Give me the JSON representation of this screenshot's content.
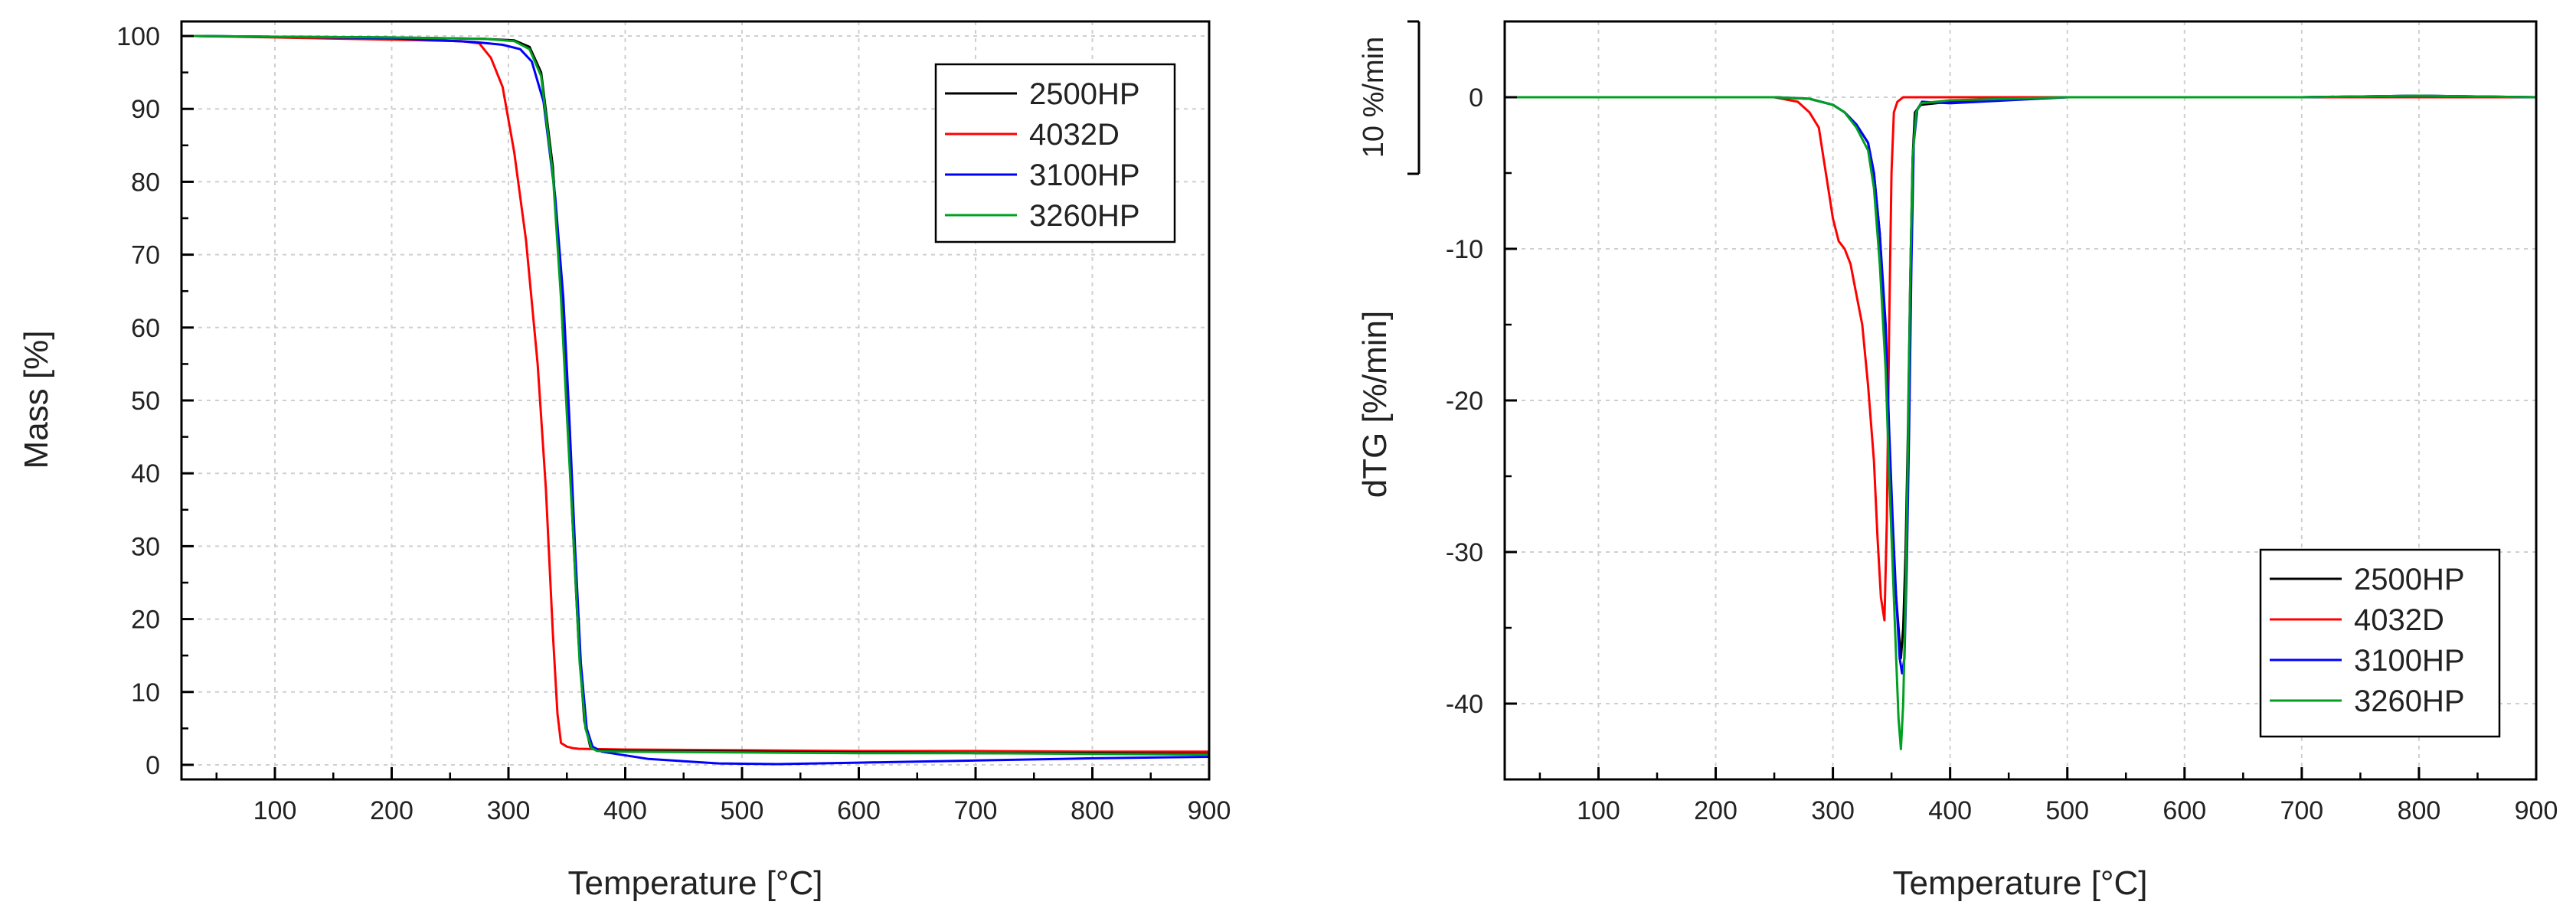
{
  "colors": {
    "2500HP": "#000000",
    "4032D": "#ff0000",
    "3100HP": "#0000ff",
    "3260HP": "#00a020",
    "grid": "#cfcfcf",
    "axis": "#000000"
  },
  "chart_data": [
    {
      "type": "line",
      "title": "",
      "xlabel": "Temperature [°C]",
      "ylabel": "Mass [%]",
      "xlim": [
        20,
        900
      ],
      "ylim": [
        -2,
        102
      ],
      "xticks": [
        100,
        200,
        300,
        400,
        500,
        600,
        700,
        800,
        900
      ],
      "xtick_labels": [
        "100",
        "200",
        "300",
        "400",
        "500",
        "600",
        "700",
        "800",
        "900"
      ],
      "yticks": [
        0,
        10,
        20,
        30,
        40,
        50,
        60,
        70,
        80,
        90,
        100
      ],
      "ytick_labels": [
        "0",
        "10",
        "20",
        "30",
        "40",
        "50",
        "60",
        "70",
        "80",
        "90",
        "100"
      ],
      "grid": true,
      "legend_position": "top-right",
      "series": [
        {
          "name": "2500HP",
          "x": [
            30,
            100,
            200,
            280,
            305,
            318,
            328,
            338,
            345,
            350,
            355,
            360,
            365,
            370,
            375,
            400,
            500,
            600,
            700,
            800,
            900
          ],
          "y": [
            100,
            99.9,
            99.8,
            99.6,
            99.4,
            98.5,
            95,
            82,
            65,
            50,
            33,
            17,
            6,
            2.5,
            2.0,
            1.9,
            1.8,
            1.7,
            1.6,
            1.6,
            1.5
          ]
        },
        {
          "name": "4032D",
          "x": [
            30,
            100,
            200,
            260,
            275,
            285,
            295,
            305,
            315,
            325,
            332,
            338,
            342,
            345,
            350,
            355,
            360,
            400,
            500,
            600,
            700,
            800,
            900
          ],
          "y": [
            100,
            99.8,
            99.5,
            99.3,
            99,
            97,
            93,
            84,
            72,
            55,
            38,
            18,
            7,
            3,
            2.5,
            2.3,
            2.2,
            2.1,
            2.0,
            1.9,
            1.9,
            1.8,
            1.8
          ]
        },
        {
          "name": "3100HP",
          "x": [
            30,
            100,
            200,
            270,
            295,
            310,
            320,
            330,
            340,
            347,
            352,
            357,
            362,
            367,
            372,
            380,
            420,
            480,
            530,
            600,
            700,
            800,
            900
          ],
          "y": [
            100,
            99.9,
            99.7,
            99.2,
            98.8,
            98.2,
            96.5,
            91,
            78,
            64,
            48,
            30,
            14,
            5,
            2.5,
            1.8,
            0.8,
            0.2,
            0.1,
            0.3,
            0.6,
            0.9,
            1.1
          ]
        },
        {
          "name": "3260HP",
          "x": [
            30,
            100,
            200,
            280,
            305,
            318,
            328,
            338,
            345,
            350,
            356,
            361,
            366,
            371,
            376,
            400,
            500,
            600,
            700,
            800,
            900
          ],
          "y": [
            100,
            99.9,
            99.8,
            99.6,
            99.3,
            98.2,
            94.5,
            81,
            64,
            48,
            30,
            14,
            5,
            2.3,
            1.9,
            1.8,
            1.7,
            1.6,
            1.6,
            1.5,
            1.4
          ]
        }
      ]
    },
    {
      "type": "line",
      "title": "",
      "xlabel": "Temperature [°C]",
      "ylabel": "dTG [%/min]",
      "scale_bar_label": "10 %/min",
      "xlim": [
        20,
        900
      ],
      "ylim": [
        -45,
        5
      ],
      "xticks": [
        100,
        200,
        300,
        400,
        500,
        600,
        700,
        800,
        900
      ],
      "xtick_labels": [
        "100",
        "200",
        "300",
        "400",
        "500",
        "600",
        "700",
        "800",
        "900"
      ],
      "yticks": [
        0,
        -10,
        -20,
        -30,
        -40
      ],
      "ytick_labels": [
        "0",
        "-10",
        "-20",
        "-30",
        "-40"
      ],
      "grid": true,
      "legend_position": "bottom-right",
      "series": [
        {
          "name": "2500HP",
          "x": [
            30,
            100,
            200,
            250,
            280,
            300,
            310,
            320,
            330,
            335,
            340,
            345,
            348,
            350,
            353,
            356,
            358,
            360,
            362,
            364,
            366,
            368,
            370,
            375,
            400,
            500,
            600,
            700,
            800,
            900
          ],
          "y": [
            0,
            0,
            0,
            0,
            -0.1,
            -0.5,
            -1,
            -1.8,
            -3,
            -5,
            -9,
            -16,
            -23,
            -28,
            -32,
            -35,
            -37,
            -35,
            -30,
            -22,
            -12,
            -4,
            -1,
            -0.5,
            -0.3,
            0,
            0,
            0,
            0.1,
            0
          ]
        },
        {
          "name": "4032D",
          "x": [
            30,
            100,
            200,
            250,
            270,
            280,
            288,
            292,
            296,
            300,
            305,
            310,
            315,
            320,
            325,
            330,
            335,
            338,
            341,
            344,
            346,
            348,
            350,
            352,
            355,
            360,
            400,
            500,
            600,
            700,
            800,
            900
          ],
          "y": [
            0,
            0,
            0,
            0,
            -0.3,
            -1,
            -2,
            -4,
            -6,
            -8,
            -9.5,
            -10,
            -11,
            -13,
            -15,
            -19,
            -24,
            -29,
            -33,
            -34.5,
            -28,
            -15,
            -5,
            -1,
            -0.3,
            0,
            0,
            0,
            0,
            0,
            0,
            0
          ]
        },
        {
          "name": "3100HP",
          "x": [
            30,
            100,
            200,
            250,
            280,
            300,
            310,
            320,
            330,
            335,
            340,
            345,
            348,
            351,
            354,
            357,
            359,
            361,
            363,
            365,
            367,
            369,
            372,
            376,
            400,
            500,
            600,
            700,
            800,
            900
          ],
          "y": [
            0,
            0,
            0,
            0,
            -0.1,
            -0.5,
            -1,
            -1.8,
            -3,
            -5,
            -9,
            -15,
            -22,
            -28,
            -33,
            -37,
            -38,
            -37,
            -31,
            -22,
            -11,
            -3,
            -0.8,
            -0.3,
            -0.4,
            0,
            0,
            0,
            0.1,
            0
          ]
        },
        {
          "name": "3260HP",
          "x": [
            30,
            100,
            200,
            250,
            280,
            300,
            310,
            320,
            330,
            335,
            340,
            345,
            348,
            351,
            354,
            356,
            358,
            360,
            362,
            364,
            366,
            368,
            371,
            375,
            400,
            500,
            600,
            700,
            800,
            900
          ],
          "y": [
            0,
            0,
            0,
            0,
            -0.1,
            -0.5,
            -1,
            -2,
            -3.5,
            -6,
            -11,
            -18,
            -25,
            -31,
            -37,
            -41,
            -43,
            -40,
            -33,
            -23,
            -12,
            -4,
            -1,
            -0.4,
            -0.2,
            0,
            0,
            0,
            0.1,
            0
          ]
        }
      ]
    }
  ]
}
